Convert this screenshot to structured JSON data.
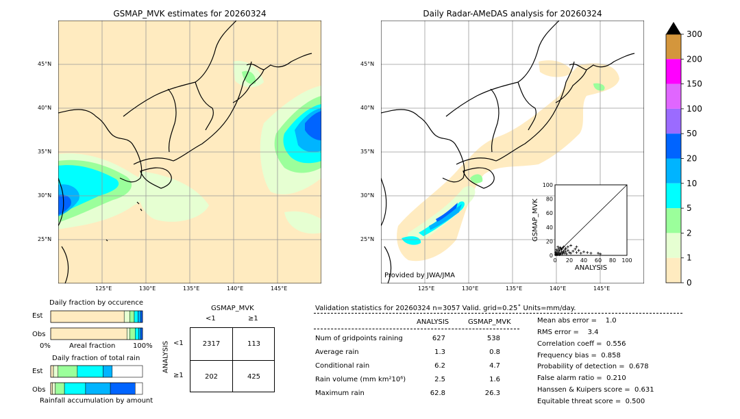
{
  "maps": {
    "left": {
      "title": "GSMAP_MVK estimates for 20260324",
      "lat_labels": [
        "45°N",
        "40°N",
        "35°N",
        "30°N",
        "25°N"
      ],
      "lon_labels": [
        "125°E",
        "130°E",
        "135°E",
        "140°E",
        "145°E"
      ]
    },
    "right": {
      "title": "Daily Radar-AMeDAS analysis for 20260324",
      "lat_labels": [
        "45°N",
        "40°N",
        "35°N",
        "30°N",
        "25°N"
      ],
      "lon_labels": [
        "125°E",
        "130°E",
        "135°E",
        "140°E",
        "145°E"
      ],
      "credit": "Provided by JWA/JMA"
    }
  },
  "colorbar": {
    "ticks": [
      "300",
      "200",
      "150",
      "100",
      "50",
      "20",
      "10",
      "5",
      "2",
      "1",
      "0"
    ],
    "colors": [
      "#d4963c",
      "#ff00ff",
      "#e066ff",
      "#9b6bff",
      "#0064ff",
      "#00b4ff",
      "#00ffff",
      "#9bff9b",
      "#e6ffd2",
      "#ffebc0"
    ]
  },
  "chart_data": [
    {
      "type": "scatter",
      "title": "",
      "xlabel": "ANALYSIS",
      "ylabel": "GSMAP_MVK",
      "xlim": [
        0,
        100
      ],
      "ylim": [
        0,
        100
      ],
      "x_ticks": [
        "0",
        "20",
        "40",
        "60",
        "80",
        "100"
      ],
      "y_ticks": [
        "0",
        "20",
        "40",
        "60",
        "80",
        "100"
      ],
      "points": [
        [
          1,
          1
        ],
        [
          2,
          3
        ],
        [
          3,
          1
        ],
        [
          4,
          2
        ],
        [
          5,
          4
        ],
        [
          6,
          1
        ],
        [
          7,
          3
        ],
        [
          8,
          2
        ],
        [
          9,
          5
        ],
        [
          10,
          2
        ],
        [
          11,
          4
        ],
        [
          12,
          6
        ],
        [
          13,
          3
        ],
        [
          14,
          8
        ],
        [
          15,
          5
        ],
        [
          16,
          2
        ],
        [
          18,
          7
        ],
        [
          20,
          4
        ],
        [
          22,
          3
        ],
        [
          25,
          6
        ],
        [
          28,
          9
        ],
        [
          30,
          4
        ],
        [
          33,
          7
        ],
        [
          36,
          3
        ],
        [
          40,
          5
        ],
        [
          45,
          4
        ],
        [
          50,
          3
        ],
        [
          3,
          6
        ],
        [
          5,
          9
        ],
        [
          7,
          11
        ],
        [
          2,
          8
        ],
        [
          10,
          10
        ],
        [
          12,
          12
        ],
        [
          4,
          12
        ],
        [
          6,
          7
        ],
        [
          8,
          10
        ],
        [
          1,
          4
        ],
        [
          9,
          8
        ],
        [
          15,
          10
        ],
        [
          18,
          12
        ],
        [
          22,
          14
        ],
        [
          30,
          12
        ],
        [
          60,
          3
        ],
        [
          63,
          2
        ]
      ]
    },
    {
      "type": "bar",
      "title": "Daily fraction by occurence",
      "categories": [
        "Est",
        "Obs"
      ],
      "xlabel": "Areal fraction",
      "x_ticks": [
        "0%",
        "100%"
      ],
      "series": [
        {
          "values": [
            0.8,
            0.83
          ]
        },
        {
          "values": [
            0.06,
            0.03
          ]
        },
        {
          "values": [
            0.05,
            0.06
          ]
        },
        {
          "values": [
            0.04,
            0.04
          ]
        },
        {
          "values": [
            0.03,
            0.02
          ]
        },
        {
          "values": [
            0.02,
            0.02
          ]
        }
      ],
      "colors": [
        "#ffebc0",
        "#e6ffd2",
        "#9bff9b",
        "#00ffff",
        "#00b4ff",
        "#0064ff"
      ]
    },
    {
      "type": "bar",
      "title": "Daily fraction of total rain",
      "categories": [
        "Est",
        "Obs"
      ],
      "xlabel": "Rainfall accumulation by amount",
      "series": [
        {
          "values": [
            0.03,
            0.02
          ]
        },
        {
          "values": [
            0.05,
            0.03
          ]
        },
        {
          "values": [
            0.21,
            0.1
          ]
        },
        {
          "values": [
            0.28,
            0.23
          ]
        },
        {
          "values": [
            0.1,
            0.27
          ]
        },
        {
          "values": [
            0.0,
            0.27
          ]
        }
      ],
      "colors": [
        "#ffebc0",
        "#e6ffd2",
        "#9bff9b",
        "#00ffff",
        "#00b4ff",
        "#0064ff"
      ]
    },
    {
      "type": "table",
      "title": "GSMAP_MVK",
      "columns": [
        "<1",
        "≥1"
      ],
      "row_label": "ANALYSIS",
      "rows": [
        "<1",
        "≥1"
      ],
      "values": [
        [
          2317,
          113
        ],
        [
          202,
          425
        ]
      ]
    },
    {
      "type": "table",
      "title": "Validation statistics for 20260324  n=3057 Valid. grid=0.25˚ Units=mm/day.",
      "columns": [
        "ANALYSIS",
        "GSMAP_MVK"
      ],
      "rows": [
        {
          "label": "Num of gridpoints raining",
          "analysis": "627",
          "gsmap": "538"
        },
        {
          "label": "Average rain",
          "analysis": "1.3",
          "gsmap": "0.8"
        },
        {
          "label": "Conditional rain",
          "analysis": "6.2",
          "gsmap": "4.7"
        },
        {
          "label": "Rain volume (mm km²10⁶)",
          "analysis": "2.5",
          "gsmap": "1.6"
        },
        {
          "label": "Maximum rain",
          "analysis": "62.8",
          "gsmap": "26.3"
        }
      ],
      "scores": [
        "Mean abs error =    1.0",
        "RMS error =    3.4",
        "Correlation coeff =  0.556",
        "Frequency bias =  0.858",
        "Probability of detection =  0.678",
        "False alarm ratio =  0.210",
        "Hanssen & Kuipers score =  0.631",
        "Equitable threat score =  0.500"
      ]
    }
  ]
}
